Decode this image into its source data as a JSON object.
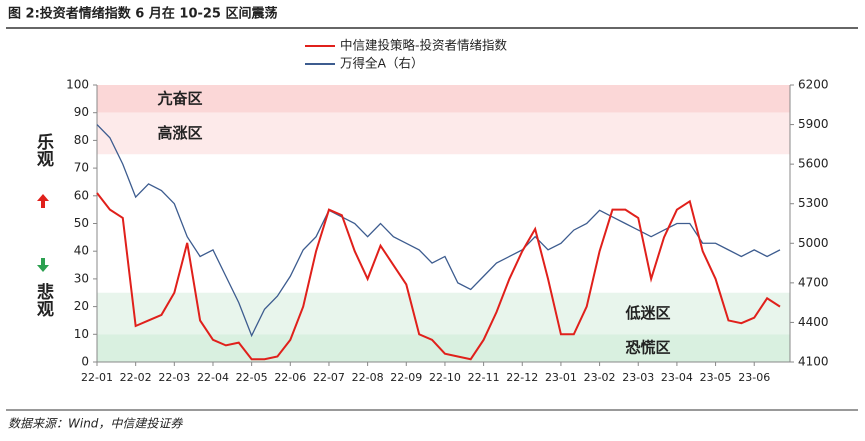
{
  "chart_data": {
    "type": "line",
    "title": "图 2:投资者情绪指数 6 月在 10-25 区间震荡",
    "source": "数据来源：Wind，中信建投证券",
    "side_labels": [
      "乐观",
      "悲观"
    ],
    "categories": [
      "22-01",
      null,
      null,
      "22-02",
      null,
      null,
      "22-03",
      null,
      null,
      "22-04",
      null,
      null,
      "22-05",
      null,
      null,
      "22-06",
      null,
      null,
      "22-07",
      null,
      null,
      "22-08",
      null,
      null,
      "22-09",
      null,
      null,
      "22-10",
      null,
      null,
      "22-11",
      null,
      null,
      "22-12",
      null,
      null,
      "23-01",
      null,
      null,
      "23-02",
      null,
      null,
      "23-03",
      null,
      null,
      "23-04",
      null,
      null,
      "23-05",
      null,
      null,
      "23-06",
      null,
      null
    ],
    "series": [
      {
        "name": "中信建投策略-投资者情绪指数",
        "color": "#e0201b",
        "values": [
          61,
          55,
          52,
          13,
          15,
          17,
          25,
          43,
          15,
          8,
          6,
          7,
          1,
          1,
          2,
          8,
          20,
          40,
          55,
          53,
          40,
          30,
          42,
          35,
          28,
          10,
          8,
          3,
          2,
          1,
          8,
          18,
          30,
          40,
          48,
          30,
          10,
          10,
          20,
          40,
          55,
          55,
          52,
          30,
          45,
          55,
          58,
          40,
          30,
          15,
          14,
          16,
          23,
          20
        ]
      },
      {
        "name": "万得全A（右）",
        "color": "#3d5c8f",
        "axis": "y2",
        "values": [
          5900,
          5800,
          5600,
          5350,
          5450,
          5400,
          5300,
          5050,
          4900,
          4950,
          4750,
          4550,
          4300,
          4500,
          4600,
          4750,
          4950,
          5050,
          5250,
          5200,
          5150,
          5050,
          5150,
          5050,
          5000,
          4950,
          4850,
          4900,
          4700,
          4650,
          4750,
          4850,
          4900,
          4950,
          5050,
          4950,
          5000,
          5100,
          5150,
          5250,
          5200,
          5150,
          5100,
          5050,
          5100,
          5150,
          5150,
          5000,
          5000,
          4950,
          4900,
          4950,
          4900,
          4950
        ]
      }
    ],
    "zones": [
      {
        "label": "亢奋区",
        "range": [
          90,
          100
        ],
        "color": "#fbd7d7"
      },
      {
        "label": "高涨区",
        "range": [
          75,
          90
        ],
        "color": "#fdeaea"
      },
      {
        "label": "低迷区",
        "range": [
          10,
          25
        ],
        "color": "#e8f5ec"
      },
      {
        "label": "恐慌区",
        "range": [
          0,
          10
        ],
        "color": "#d9f0e0"
      }
    ],
    "ylim": [
      0,
      100
    ],
    "yticks": [
      0,
      10,
      20,
      30,
      40,
      50,
      60,
      70,
      80,
      90,
      100
    ],
    "y2lim": [
      4100,
      6200
    ],
    "y2ticks": [
      4100,
      4400,
      4700,
      5000,
      5300,
      5600,
      5900,
      6200
    ]
  }
}
